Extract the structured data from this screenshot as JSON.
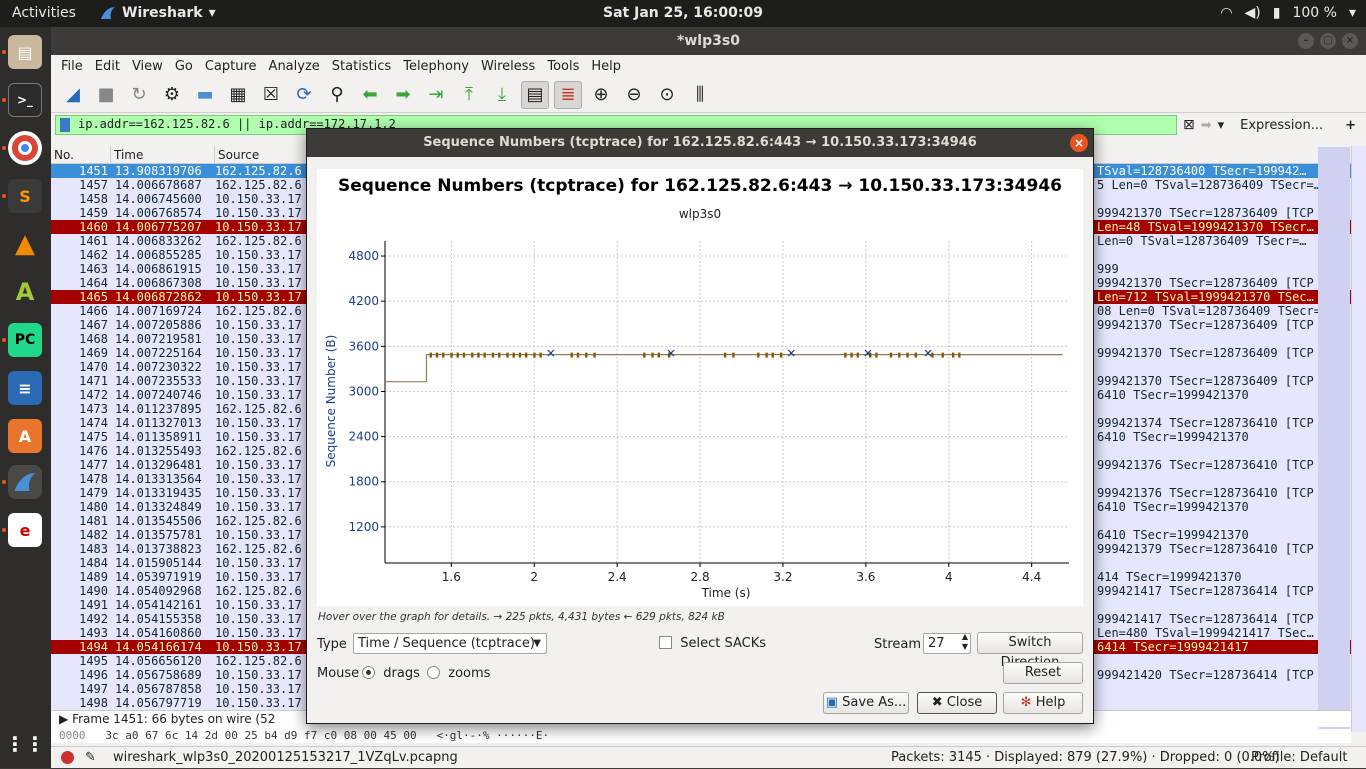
{
  "topbar": {
    "activities": "Activities",
    "app_name": "Wireshark",
    "clock": "Sat Jan 25, 16:00:09",
    "battery": "100 %"
  },
  "window": {
    "title": "*wlp3s0"
  },
  "menu": [
    "File",
    "Edit",
    "View",
    "Go",
    "Capture",
    "Analyze",
    "Statistics",
    "Telephony",
    "Wireless",
    "Tools",
    "Help"
  ],
  "filter": {
    "value": "ip.addr==162.125.82.6 || ip.addr==172.17.1.2",
    "expression_label": "Expression...",
    "add_label": "+"
  },
  "packet_list": {
    "columns": [
      "No.",
      "Time",
      "Source"
    ],
    "rows": [
      {
        "no": "1451",
        "time": "13.908319706",
        "src": "162.125.82.6",
        "info": "TSval=128736400 TSecr=199942…",
        "style": "sel"
      },
      {
        "no": "1457",
        "time": "14.006678687",
        "src": "162.125.82.6",
        "info": "5 Len=0 TSval=128736409 TSecr=…",
        "style": ""
      },
      {
        "no": "1458",
        "time": "14.006745600",
        "src": "10.150.33.17",
        "info": "",
        "style": ""
      },
      {
        "no": "1459",
        "time": "14.006768574",
        "src": "10.150.33.17",
        "info": "999421370 TSecr=128736409 [TCP …",
        "style": ""
      },
      {
        "no": "1460",
        "time": "14.006775207",
        "src": "10.150.33.17",
        "info": "Len=48 TSval=1999421370 TSecr…",
        "style": "bad"
      },
      {
        "no": "1461",
        "time": "14.006833262",
        "src": "162.125.82.6",
        "info": "Len=0 TSval=128736409 TSecr=…",
        "style": ""
      },
      {
        "no": "1462",
        "time": "14.006855285",
        "src": "10.150.33.17",
        "info": "",
        "style": ""
      },
      {
        "no": "1463",
        "time": "14.006861915",
        "src": "10.150.33.17",
        "info": "999",
        "style": ""
      },
      {
        "no": "1464",
        "time": "14.006867308",
        "src": "10.150.33.17",
        "info": "999421370 TSecr=128736409 [TCP …",
        "style": ""
      },
      {
        "no": "1465",
        "time": "14.006872862",
        "src": "10.150.33.17",
        "info": "Len=712 TSval=1999421370 TSec…",
        "style": "bad"
      },
      {
        "no": "1466",
        "time": "14.007169724",
        "src": "162.125.82.6",
        "info": "08 Len=0 TSval=128736409 TSecr=…",
        "style": ""
      },
      {
        "no": "1467",
        "time": "14.007205886",
        "src": "10.150.33.17",
        "info": "999421370 TSecr=128736409 [TCP …",
        "style": ""
      },
      {
        "no": "1468",
        "time": "14.007219581",
        "src": "10.150.33.17",
        "info": "",
        "style": ""
      },
      {
        "no": "1469",
        "time": "14.007225164",
        "src": "10.150.33.17",
        "info": "999421370 TSecr=128736409 [TCP …",
        "style": ""
      },
      {
        "no": "1470",
        "time": "14.007230322",
        "src": "10.150.33.17",
        "info": "",
        "style": ""
      },
      {
        "no": "1471",
        "time": "14.007235533",
        "src": "10.150.33.17",
        "info": "999421370 TSecr=128736409 [TCP …",
        "style": ""
      },
      {
        "no": "1472",
        "time": "14.007240746",
        "src": "10.150.33.17",
        "info": "6410 TSecr=1999421370",
        "style": ""
      },
      {
        "no": "1473",
        "time": "14.011237895",
        "src": "162.125.82.6",
        "info": "",
        "style": ""
      },
      {
        "no": "1474",
        "time": "14.011327013",
        "src": "10.150.33.17",
        "info": "999421374 TSecr=128736410 [TCP …",
        "style": ""
      },
      {
        "no": "1475",
        "time": "14.011358911",
        "src": "10.150.33.17",
        "info": "6410 TSecr=1999421370",
        "style": ""
      },
      {
        "no": "1476",
        "time": "14.013255493",
        "src": "162.125.82.6",
        "info": "",
        "style": ""
      },
      {
        "no": "1477",
        "time": "14.013296481",
        "src": "10.150.33.17",
        "info": "999421376 TSecr=128736410 [TCP …",
        "style": ""
      },
      {
        "no": "1478",
        "time": "14.013313564",
        "src": "10.150.33.17",
        "info": "",
        "style": ""
      },
      {
        "no": "1479",
        "time": "14.013319435",
        "src": "10.150.33.17",
        "info": "999421376 TSecr=128736410 [TCP …",
        "style": ""
      },
      {
        "no": "1480",
        "time": "14.013324849",
        "src": "10.150.33.17",
        "info": "6410 TSecr=1999421370",
        "style": ""
      },
      {
        "no": "1481",
        "time": "14.013545506",
        "src": "162.125.82.6",
        "info": "",
        "style": ""
      },
      {
        "no": "1482",
        "time": "14.013575781",
        "src": "10.150.33.17",
        "info": "6410 TSecr=1999421370",
        "style": ""
      },
      {
        "no": "1483",
        "time": "14.013738823",
        "src": "162.125.82.6",
        "info": "999421379 TSecr=128736410 [TCP …",
        "style": ""
      },
      {
        "no": "1484",
        "time": "14.015905144",
        "src": "10.150.33.17",
        "info": "",
        "style": ""
      },
      {
        "no": "1489",
        "time": "14.053971919",
        "src": "10.150.33.17",
        "info": "414 TSecr=1999421370",
        "style": ""
      },
      {
        "no": "1490",
        "time": "14.054092968",
        "src": "162.125.82.6",
        "info": "999421417 TSecr=128736414 [TCP …",
        "style": ""
      },
      {
        "no": "1491",
        "time": "14.054142161",
        "src": "10.150.33.17",
        "info": "",
        "style": ""
      },
      {
        "no": "1492",
        "time": "14.054155358",
        "src": "10.150.33.17",
        "info": "999421417 TSecr=128736414 [TCP …",
        "style": ""
      },
      {
        "no": "1493",
        "time": "14.054160860",
        "src": "10.150.33.17",
        "info": "Len=480 TSval=1999421417 TSec…",
        "style": ""
      },
      {
        "no": "1494",
        "time": "14.054166174",
        "src": "10.150.33.17",
        "info": "6414 TSecr=1999421417",
        "style": "bad"
      },
      {
        "no": "1495",
        "time": "14.056656120",
        "src": "162.125.82.6",
        "info": "",
        "style": ""
      },
      {
        "no": "1496",
        "time": "14.056758689",
        "src": "10.150.33.17",
        "info": "999421420 TSecr=128736414 [TCP …",
        "style": ""
      },
      {
        "no": "1497",
        "time": "14.056787858",
        "src": "10.150.33.17",
        "info": "",
        "style": ""
      },
      {
        "no": "1498",
        "time": "14.056797719",
        "src": "10.150.33.17",
        "info": "",
        "style": ""
      }
    ]
  },
  "detail": {
    "frame": "Frame 1451: 66 bytes on wire (52"
  },
  "bytes": {
    "offset": "0000",
    "hex": "3c a0 67 6c 14 2d 00 25  b4 d9 f7 c0 08 00 45 00",
    "ascii": "<·gl·-·%  ······E·"
  },
  "status": {
    "file": "wireshark_wlp3s0_20200125153217_1VZqLv.pcapng",
    "packets": "Packets: 3145 · Displayed: 879 (27.9%) · Dropped: 0 (0.0%)",
    "profile": "Profile: Default"
  },
  "dialog": {
    "window_title": "Sequence Numbers (tcptrace) for 162.125.82.6:443 → 10.150.33.173:34946",
    "hover_hint": "Hover over the graph for details. → 225 pkts, 4,431 bytes ← 629 pkts, 824 kB",
    "type_label": "Type",
    "type_value": "Time / Sequence (tcptrace)",
    "select_sacks": "Select SACKs",
    "stream_label": "Stream",
    "stream_value": "27",
    "switch_direction": "Switch Direction",
    "mouse_label": "Mouse",
    "drags": "drags",
    "zooms": "zooms",
    "reset": "Reset",
    "save_as": "Save As...",
    "close": "Close",
    "help": "Help"
  },
  "chart_data": {
    "type": "line",
    "title": "Sequence Numbers (tcptrace) for 162.125.82.6:443 → 10.150.33.173:34946",
    "subtitle": "wlp3s0",
    "xlabel": "Time (s)",
    "ylabel": "Sequence Number (B)",
    "xlim": [
      1.28,
      4.58
    ],
    "ylim": [
      720,
      5000
    ],
    "xticks": [
      "1.6",
      "2",
      "2.4",
      "2.8",
      "3.2",
      "3.6",
      "4",
      "4.4"
    ],
    "yticks": [
      "1200",
      "1800",
      "2400",
      "3000",
      "3600",
      "4200",
      "4800"
    ],
    "grid": true,
    "series": [
      {
        "kind": "step",
        "color": "#8c7e5c",
        "x": [
          1.28,
          1.48,
          1.48,
          4.55
        ],
        "y": [
          3130,
          3130,
          3490,
          3490
        ]
      },
      {
        "kind": "ticks",
        "color": "#8b5a00",
        "x": [
          1.5,
          1.53,
          1.56,
          1.6,
          1.63,
          1.66,
          1.7,
          1.73,
          1.76,
          1.8,
          1.83,
          1.87,
          1.9,
          1.93,
          1.96,
          2.0,
          2.03,
          2.18,
          2.21,
          2.25,
          2.29,
          2.53,
          2.57,
          2.6,
          2.65,
          2.92,
          2.96,
          3.08,
          3.12,
          3.15,
          3.19,
          3.5,
          3.53,
          3.56,
          3.62,
          3.65,
          3.72,
          3.76,
          3.8,
          3.84,
          3.92,
          3.97,
          4.02,
          4.05
        ],
        "y": 3490
      },
      {
        "kind": "sack",
        "color": "#1a3f8f",
        "x": [
          2.08,
          2.66,
          3.24,
          3.61,
          3.9
        ],
        "y": 3510
      }
    ]
  }
}
